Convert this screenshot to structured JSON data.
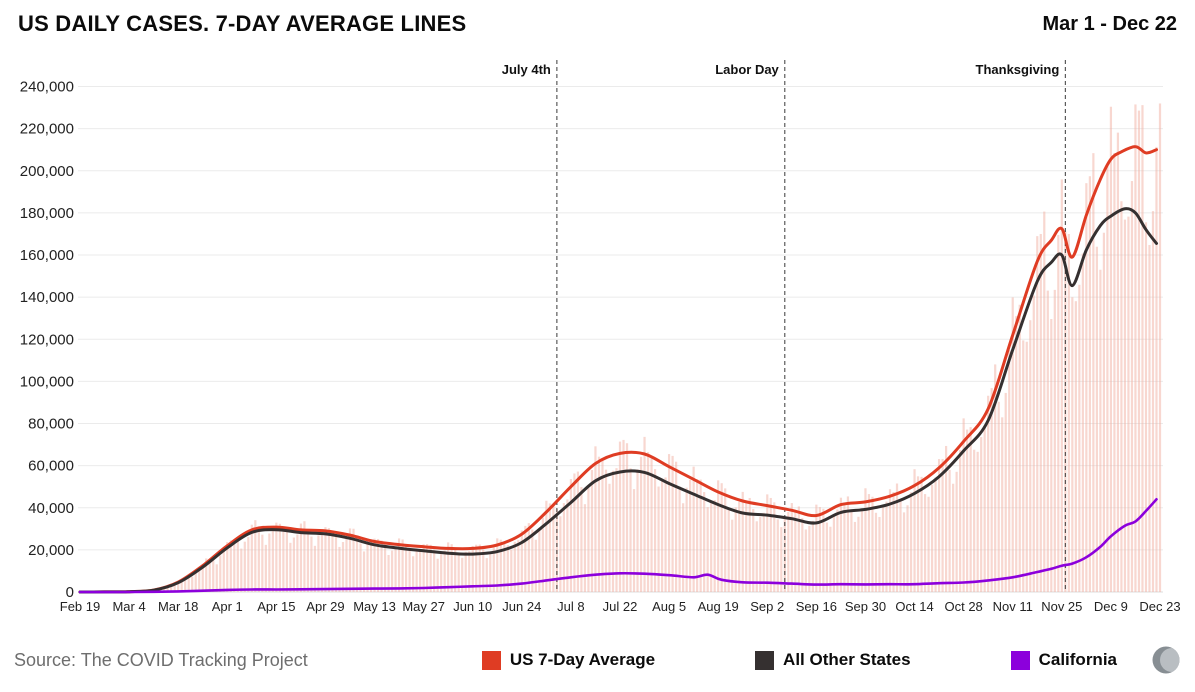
{
  "footer": {
    "source": "Source: The COVID Tracking Project"
  },
  "chart_data": {
    "type": "line",
    "title": "US DAILY CASES. 7-DAY AVERAGE LINES",
    "date_range": "Mar 1 - Dec 22",
    "x_axis": {
      "domain_days": [
        0,
        308
      ],
      "tick_days": [
        0,
        14,
        28,
        42,
        56,
        70,
        84,
        98,
        112,
        126,
        140,
        154,
        168,
        182,
        196,
        210,
        224,
        238,
        252,
        266,
        280,
        294,
        308
      ],
      "tick_labels": [
        "Feb 19",
        "Mar 4",
        "Mar 18",
        "Apr 1",
        "Apr 15",
        "Apr 29",
        "May 13",
        "May 27",
        "Jun 10",
        "Jun 24",
        "Jul 8",
        "Jul 22",
        "Aug 5",
        "Aug 19",
        "Sep 2",
        "Sep 16",
        "Sep 30",
        "Oct 14",
        "Oct 28",
        "Nov 11",
        "Nov 25",
        "Dec 9",
        "Dec 23"
      ]
    },
    "y_axis": {
      "max": 245000,
      "ticks": [
        0,
        20000,
        40000,
        60000,
        80000,
        100000,
        120000,
        140000,
        160000,
        180000,
        200000,
        220000,
        240000
      ],
      "tick_labels": [
        "0",
        "20,000",
        "40,000",
        "60,000",
        "80,000",
        "100,000",
        "120,000",
        "140,000",
        "160,000",
        "180,000",
        "200,000",
        "220,000",
        "240,000"
      ]
    },
    "events": [
      {
        "label": "July 4th",
        "day": 136
      },
      {
        "label": "Labor Day",
        "day": 201
      },
      {
        "label": "Thanksgiving",
        "day": 281
      }
    ],
    "style": {
      "grid_color": "#ebebeb",
      "zero_line_color": "#dcdcdc",
      "axis_text_color": "#222222",
      "event_line_color": "#3a3a3a",
      "event_label_color": "#111111"
    },
    "series": [
      {
        "name": "US 7-Day Average",
        "color": "#df3c23",
        "width": 3,
        "points": [
          [
            0,
            20
          ],
          [
            7,
            40
          ],
          [
            11,
            70
          ],
          [
            14,
            150
          ],
          [
            21,
            900
          ],
          [
            28,
            4700
          ],
          [
            35,
            12500
          ],
          [
            42,
            22000
          ],
          [
            49,
            29500
          ],
          [
            56,
            30800
          ],
          [
            63,
            29500
          ],
          [
            70,
            29000
          ],
          [
            77,
            27000
          ],
          [
            84,
            24000
          ],
          [
            91,
            22500
          ],
          [
            98,
            21500
          ],
          [
            105,
            20700
          ],
          [
            112,
            20700
          ],
          [
            119,
            22300
          ],
          [
            126,
            27500
          ],
          [
            133,
            38000
          ],
          [
            140,
            50000
          ],
          [
            147,
            61000
          ],
          [
            154,
            65800
          ],
          [
            161,
            65500
          ],
          [
            168,
            59500
          ],
          [
            175,
            53500
          ],
          [
            182,
            47500
          ],
          [
            189,
            43200
          ],
          [
            196,
            41000
          ],
          [
            203,
            38800
          ],
          [
            210,
            36300
          ],
          [
            217,
            41500
          ],
          [
            224,
            42800
          ],
          [
            231,
            45500
          ],
          [
            238,
            50500
          ],
          [
            245,
            59000
          ],
          [
            252,
            71500
          ],
          [
            259,
            87000
          ],
          [
            266,
            122000
          ],
          [
            273,
            157000
          ],
          [
            277,
            167000
          ],
          [
            280,
            172500
          ],
          [
            283,
            159000
          ],
          [
            287,
            179000
          ],
          [
            291,
            196000
          ],
          [
            294,
            205500
          ],
          [
            297,
            209000
          ],
          [
            301,
            211500
          ],
          [
            304,
            208500
          ],
          [
            307,
            210000
          ]
        ]
      },
      {
        "name": "All Other States",
        "color": "#353030",
        "width": 3,
        "points": [
          [
            0,
            18
          ],
          [
            7,
            38
          ],
          [
            11,
            65
          ],
          [
            14,
            140
          ],
          [
            21,
            850
          ],
          [
            28,
            4400
          ],
          [
            35,
            11800
          ],
          [
            42,
            21000
          ],
          [
            49,
            28300
          ],
          [
            56,
            29600
          ],
          [
            63,
            28200
          ],
          [
            70,
            27600
          ],
          [
            77,
            25500
          ],
          [
            84,
            22400
          ],
          [
            91,
            20800
          ],
          [
            98,
            19600
          ],
          [
            105,
            18400
          ],
          [
            112,
            18000
          ],
          [
            119,
            19200
          ],
          [
            126,
            23500
          ],
          [
            133,
            32500
          ],
          [
            140,
            42500
          ],
          [
            147,
            52800
          ],
          [
            154,
            57000
          ],
          [
            161,
            56800
          ],
          [
            168,
            51500
          ],
          [
            175,
            46500
          ],
          [
            182,
            41500
          ],
          [
            189,
            37500
          ],
          [
            196,
            36500
          ],
          [
            203,
            34800
          ],
          [
            210,
            32800
          ],
          [
            217,
            37800
          ],
          [
            224,
            39200
          ],
          [
            231,
            41800
          ],
          [
            238,
            46800
          ],
          [
            245,
            54800
          ],
          [
            252,
            67000
          ],
          [
            259,
            81500
          ],
          [
            266,
            115000
          ],
          [
            273,
            147500
          ],
          [
            277,
            156500
          ],
          [
            280,
            160000
          ],
          [
            283,
            145500
          ],
          [
            287,
            162500
          ],
          [
            291,
            174000
          ],
          [
            294,
            178500
          ],
          [
            298,
            182000
          ],
          [
            301,
            180000
          ],
          [
            304,
            172000
          ],
          [
            307,
            165500
          ]
        ]
      },
      {
        "name": "California",
        "color": "#8c00dc",
        "width": 2.6,
        "points": [
          [
            0,
            0
          ],
          [
            14,
            10
          ],
          [
            28,
            300
          ],
          [
            42,
            1000
          ],
          [
            49,
            1200
          ],
          [
            56,
            1200
          ],
          [
            63,
            1300
          ],
          [
            70,
            1400
          ],
          [
            77,
            1500
          ],
          [
            84,
            1600
          ],
          [
            91,
            1700
          ],
          [
            98,
            1900
          ],
          [
            105,
            2300
          ],
          [
            112,
            2700
          ],
          [
            119,
            3100
          ],
          [
            126,
            4000
          ],
          [
            133,
            5500
          ],
          [
            140,
            7000
          ],
          [
            147,
            8200
          ],
          [
            154,
            8900
          ],
          [
            161,
            8700
          ],
          [
            168,
            8000
          ],
          [
            175,
            7000
          ],
          [
            179,
            8200
          ],
          [
            183,
            5800
          ],
          [
            189,
            4600
          ],
          [
            196,
            4400
          ],
          [
            203,
            4000
          ],
          [
            210,
            3500
          ],
          [
            217,
            3700
          ],
          [
            224,
            3600
          ],
          [
            231,
            3700
          ],
          [
            238,
            3700
          ],
          [
            245,
            4200
          ],
          [
            252,
            4500
          ],
          [
            259,
            5500
          ],
          [
            266,
            7000
          ],
          [
            273,
            9500
          ],
          [
            277,
            11000
          ],
          [
            280,
            12500
          ],
          [
            283,
            13500
          ],
          [
            287,
            16500
          ],
          [
            291,
            21500
          ],
          [
            294,
            26500
          ],
          [
            298,
            31500
          ],
          [
            301,
            33500
          ],
          [
            304,
            38500
          ],
          [
            307,
            44000
          ]
        ]
      }
    ],
    "bars": {
      "name": "US daily reported cases",
      "based_on_series": "US 7-Day Average",
      "color": "#f2b0a1",
      "opacity": 0.5,
      "bar_width": 2.2,
      "weekday_pattern": [
        1.06,
        1.1,
        1.03,
        0.9,
        0.8,
        0.85,
        0.99
      ],
      "jitter_amp": 0.05,
      "jitter_freq": 2.7,
      "jitter2_amp": 0.04,
      "jitter2_freq": 1.37,
      "jitter2_phase": 2.1
    }
  }
}
